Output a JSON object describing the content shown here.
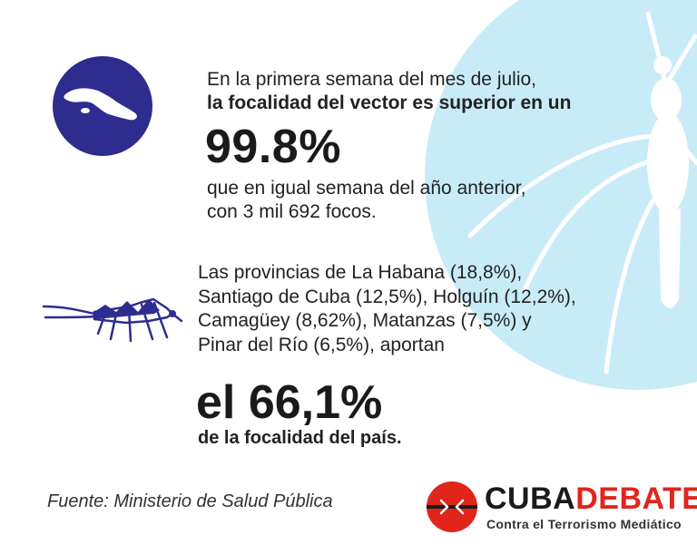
{
  "colors": {
    "circle_bg": "#c8ecf7",
    "badge_blue": "#2e2c8f",
    "logo_red": "#e1251b",
    "text_dark": "#222222"
  },
  "icons": {
    "background": "mosquito-silhouette-icon",
    "badge": "cuba-map-icon",
    "small": "mosquito-icon",
    "logo": "cubadebate-logo-icon"
  },
  "block1": {
    "line1": "En la primera semana del mes de julio,",
    "line2": "la focalidad del vector es superior en un",
    "big_value": "99.8%",
    "line3": "que en igual semana del año anterior,",
    "line4": "con 3 mil 692 focos."
  },
  "block2": {
    "lines": [
      "Las provincias de La Habana (18,8%),",
      "Santiago de Cuba (12,5%), Holguín (12,2%),",
      "Camagüey (8,62%), Matanzas (7,5%) y",
      "Pinar del Río (6,5%), aportan"
    ],
    "big_value": "el 66,1%",
    "closing": "de la focalidad del país."
  },
  "footer": {
    "source": "Fuente: Ministerio de Salud Pública",
    "logo_part1": "CUBA",
    "logo_part2": "DEBATE",
    "tagline": "Contra el Terrorismo Mediático"
  }
}
